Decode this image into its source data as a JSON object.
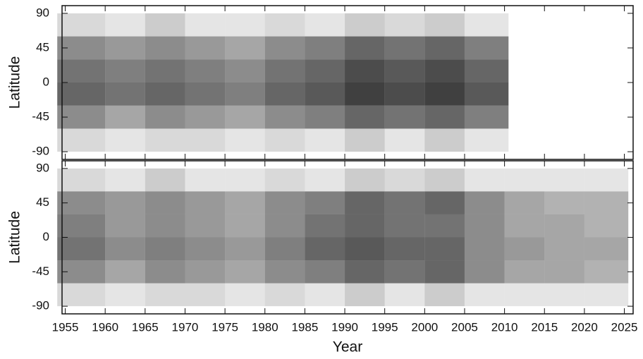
{
  "chart_data": [
    {
      "type": "heatmap",
      "y_label": "Latitude",
      "color": "#000000",
      "xlim": [
        1954.6,
        2026.1
      ],
      "ylim": [
        -100,
        100
      ],
      "xticks": [
        1955,
        1960,
        1965,
        1970,
        1975,
        1980,
        1985,
        1990,
        1995,
        2000,
        2005,
        2010,
        2015,
        2020,
        2025
      ],
      "xtick_labels": false,
      "yticks": [
        -90,
        -45,
        0,
        45,
        90
      ],
      "bins_x": [
        1954,
        1960,
        1965,
        1970,
        1975,
        1980,
        1985,
        1990,
        1995,
        2000,
        2005,
        2010.5
      ],
      "bins_y": [
        -90,
        -60,
        -30,
        0,
        30,
        60,
        90
      ],
      "density": [
        [
          0.15,
          0.1,
          0.15,
          0.15,
          0.1,
          0.15,
          0.1,
          0.2,
          0.1,
          0.2,
          0.1
        ],
        [
          0.45,
          0.35,
          0.45,
          0.4,
          0.35,
          0.45,
          0.5,
          0.6,
          0.55,
          0.6,
          0.5
        ],
        [
          0.6,
          0.55,
          0.6,
          0.55,
          0.5,
          0.6,
          0.65,
          0.75,
          0.7,
          0.75,
          0.65
        ],
        [
          0.55,
          0.5,
          0.55,
          0.5,
          0.45,
          0.55,
          0.6,
          0.7,
          0.65,
          0.7,
          0.6
        ],
        [
          0.45,
          0.4,
          0.45,
          0.4,
          0.35,
          0.45,
          0.5,
          0.6,
          0.55,
          0.6,
          0.5
        ],
        [
          0.15,
          0.1,
          0.2,
          0.1,
          0.1,
          0.15,
          0.1,
          0.2,
          0.15,
          0.2,
          0.1
        ]
      ]
    },
    {
      "type": "heatmap",
      "y_label": "Latitude",
      "x_label": "Year",
      "color": "#000000",
      "xlim": [
        1954.6,
        2026.1
      ],
      "ylim": [
        -100,
        100
      ],
      "xticks": [
        1955,
        1960,
        1965,
        1970,
        1975,
        1980,
        1985,
        1990,
        1995,
        2000,
        2005,
        2010,
        2015,
        2020,
        2025
      ],
      "xtick_labels": true,
      "yticks": [
        -90,
        -45,
        0,
        45,
        90
      ],
      "bins_x": [
        1954,
        1960,
        1965,
        1970,
        1975,
        1980,
        1985,
        1990,
        1995,
        2000,
        2005,
        2010,
        2015,
        2020,
        2025.5
      ],
      "bins_y": [
        -90,
        -60,
        -30,
        0,
        30,
        60,
        90
      ],
      "density": [
        [
          0.15,
          0.1,
          0.15,
          0.15,
          0.1,
          0.15,
          0.1,
          0.2,
          0.1,
          0.2,
          0.1,
          0.1,
          0.1,
          0.1
        ],
        [
          0.45,
          0.35,
          0.45,
          0.4,
          0.35,
          0.45,
          0.5,
          0.6,
          0.55,
          0.6,
          0.45,
          0.35,
          0.35,
          0.3
        ],
        [
          0.55,
          0.45,
          0.5,
          0.45,
          0.4,
          0.5,
          0.6,
          0.65,
          0.6,
          0.6,
          0.45,
          0.4,
          0.35,
          0.35
        ],
        [
          0.5,
          0.4,
          0.45,
          0.4,
          0.35,
          0.45,
          0.55,
          0.6,
          0.55,
          0.55,
          0.45,
          0.35,
          0.35,
          0.3
        ],
        [
          0.45,
          0.4,
          0.45,
          0.4,
          0.35,
          0.45,
          0.5,
          0.6,
          0.55,
          0.6,
          0.45,
          0.35,
          0.3,
          0.3
        ],
        [
          0.15,
          0.1,
          0.2,
          0.1,
          0.1,
          0.15,
          0.1,
          0.2,
          0.15,
          0.2,
          0.1,
          0.1,
          0.1,
          0.1
        ]
      ]
    }
  ]
}
